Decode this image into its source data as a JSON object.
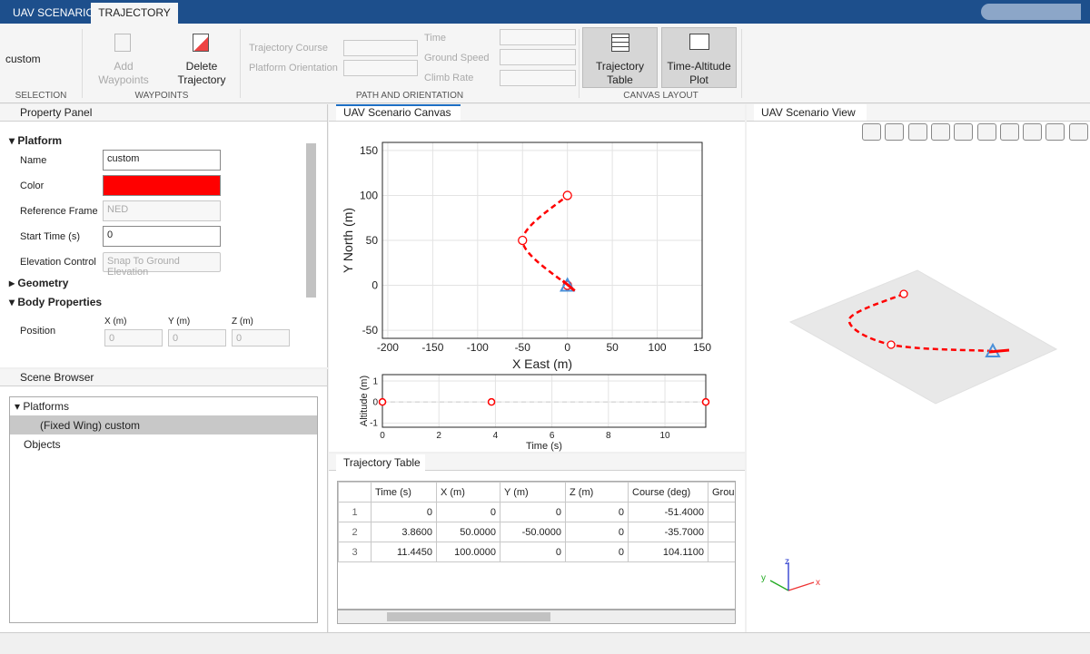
{
  "tabs": [
    "UAV SCENARIO",
    "TRAJECTORY"
  ],
  "toolstrip": {
    "selection": {
      "value": "custom",
      "label": "SELECTION"
    },
    "waypoints": {
      "buttons": [
        "Add Waypoints",
        "Delete Trajectory"
      ],
      "label": "WAYPOINTS"
    },
    "path": {
      "fields": [
        "Trajectory Course",
        "Platform Orientation",
        "Time",
        "Ground Speed",
        "Climb Rate"
      ],
      "label": "PATH AND ORIENTATION"
    },
    "layout": {
      "buttons": [
        "Trajectory Table",
        "Time-Altitude Plot"
      ],
      "label": "CANVAS LAYOUT"
    }
  },
  "property_panel": {
    "title": "Property Panel",
    "platform": "Platform",
    "fields": [
      {
        "label": "Name",
        "value": "custom"
      },
      {
        "label": "Color",
        "color": "#ff0000"
      },
      {
        "label": "Reference Frame",
        "value": "NED"
      },
      {
        "label": "Start Time (s)",
        "value": "0"
      },
      {
        "label": "Elevation Control",
        "value": "Snap To Ground Elevation"
      }
    ],
    "geometry": "Geometry",
    "body": "Body Properties",
    "position": {
      "label": "Position",
      "axes": [
        "X (m)",
        "Y (m)",
        "Z (m)"
      ],
      "values": [
        "0",
        "0",
        "0"
      ]
    }
  },
  "scene_browser": {
    "title": "Scene Browser",
    "platforms": "Platforms",
    "item": "(Fixed Wing) custom",
    "objects": "Objects"
  },
  "canvas": {
    "title": "UAV Scenario Canvas",
    "map": {
      "xlabel": "X East (m)",
      "ylabel": "Y North (m)",
      "xlim": [
        -206,
        150
      ],
      "ylim": [
        -59,
        159
      ],
      "xticks": [
        -200,
        -150,
        -100,
        -50,
        0,
        50,
        100,
        150
      ],
      "yticks": [
        -50,
        0,
        50,
        100,
        150
      ]
    },
    "altitude": {
      "xlabel": "Time (s)",
      "ylabel": "Altitude (m)",
      "xlim": [
        0,
        11.445
      ],
      "ylim": [
        -1.2,
        1.3
      ],
      "xticks": [
        0,
        2,
        4,
        6,
        8,
        10
      ],
      "yticks": [
        -1,
        0,
        1
      ]
    }
  },
  "table": {
    "title": "Trajectory Table",
    "columns": [
      "Time (s)",
      "X (m)",
      "Y (m)",
      "Z (m)",
      "Course (deg)",
      "Grou"
    ],
    "row_numbers": [
      "1",
      "2",
      "3"
    ],
    "rows": [
      [
        "0",
        "0",
        "0",
        "0",
        "-51.4000"
      ],
      [
        "3.8600",
        "50.0000",
        "-50.0000",
        "0",
        "-35.7000"
      ],
      [
        "11.4450",
        "100.0000",
        "0",
        "0",
        "104.1100"
      ]
    ]
  },
  "view": {
    "title": "UAV Scenario View",
    "axes": [
      "x",
      "y",
      "z"
    ]
  }
}
